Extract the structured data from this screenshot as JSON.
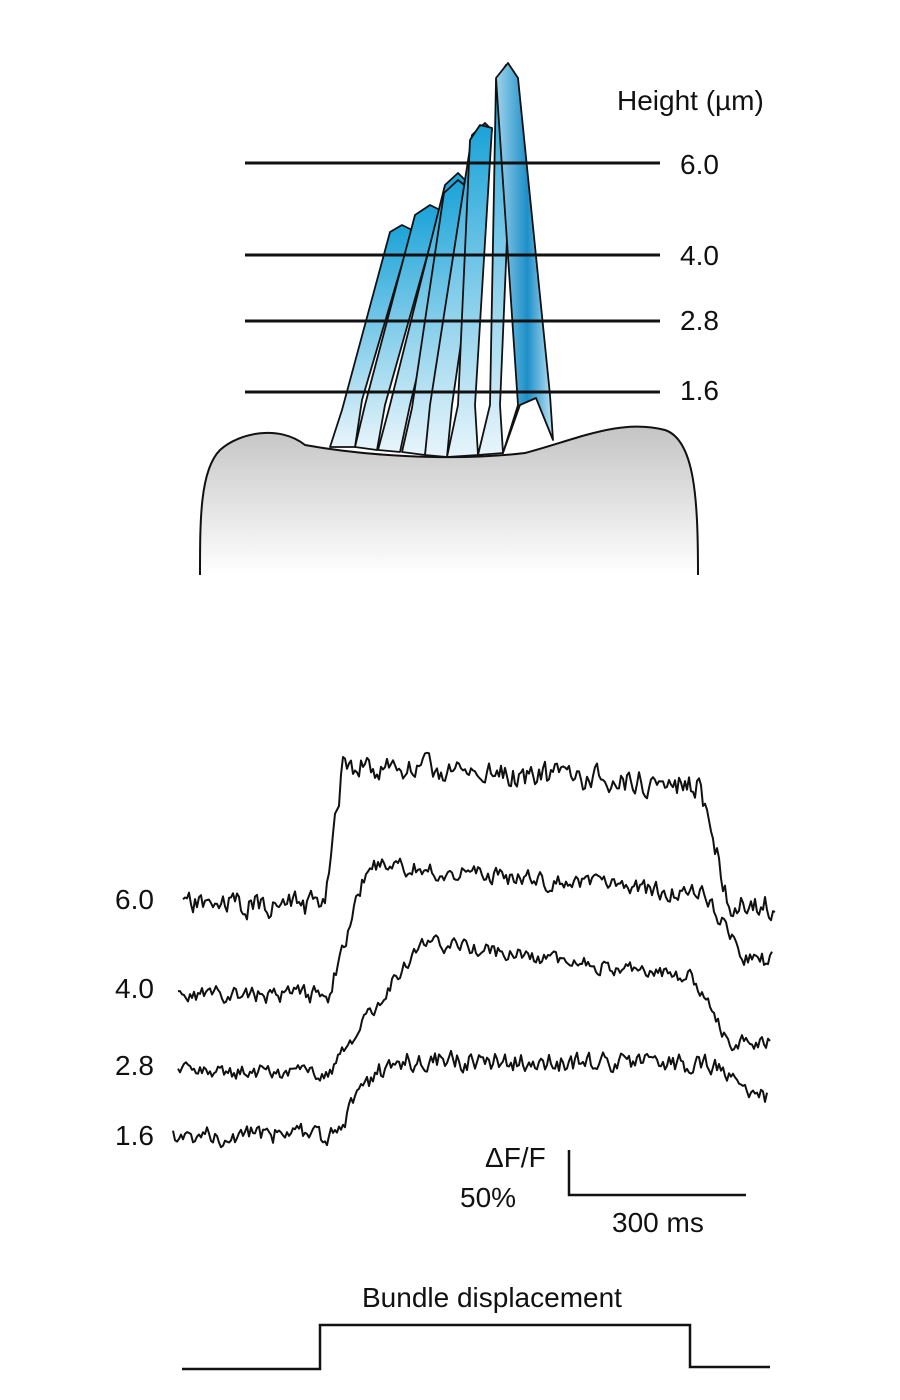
{
  "height_axis": {
    "title": "Height (µm)"
  },
  "levels": [
    "6.0",
    "4.0",
    "2.8",
    "1.6"
  ],
  "trace_labels": [
    "6.0",
    "4.0",
    "2.8",
    "1.6"
  ],
  "scale_bar": {
    "y_label_line1": "ΔF/F",
    "y_label_line2": "50%",
    "x_label": "300 ms"
  },
  "stimulus": {
    "label": "Bundle displacement"
  },
  "colors": {
    "stereocilia": "#1ba3d8",
    "cell_body": "#d0d0d0",
    "ink": "#111111"
  }
}
